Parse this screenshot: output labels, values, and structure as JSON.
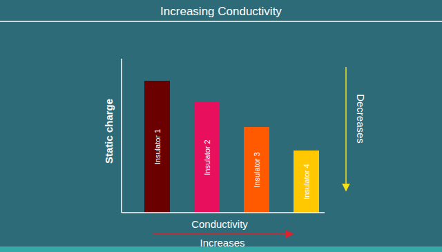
{
  "chart_data": {
    "type": "bar",
    "title": "Increasing Conductivity",
    "categories": [
      "Insulator 1",
      "Insulator 2",
      "Insulator 3",
      "Insulator 4"
    ],
    "values": [
      191,
      160,
      124,
      90
    ],
    "colors": [
      "#6b0000",
      "#e8105c",
      "#ff5a00",
      "#ffc800"
    ],
    "ylim": [
      0,
      223
    ],
    "x_label": "Conductivity",
    "y_label": "Static charge",
    "x_annotation": "Increases",
    "y_annotation": "Decreases",
    "tick_labels": false,
    "grid": false
  }
}
